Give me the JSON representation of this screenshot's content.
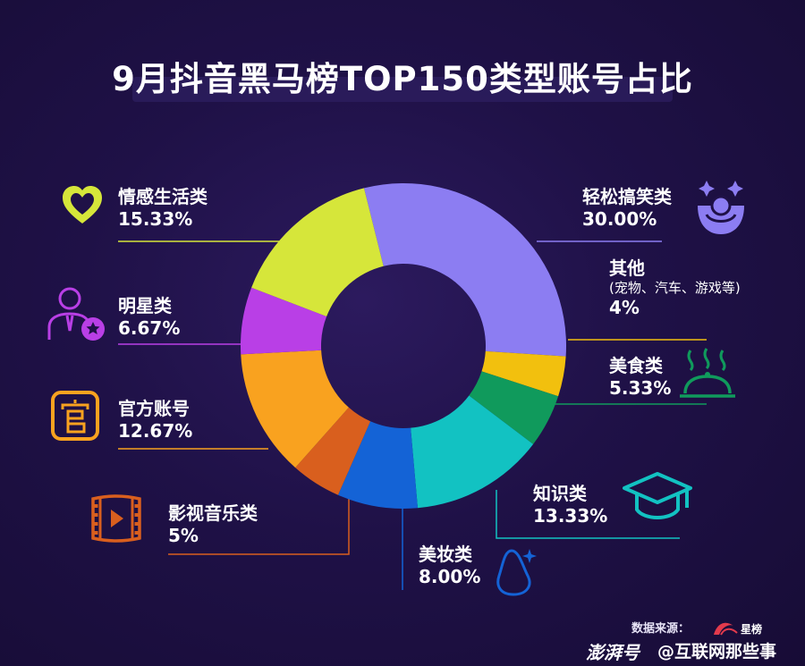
{
  "title": "9月抖音黑马榜TOP150类型账号占比",
  "chart_data": {
    "type": "pie",
    "donut": true,
    "title": "9月抖音黑马榜TOP150类型账号占比",
    "slices": [
      {
        "name": "轻松搞笑类",
        "pct_label": "30.00%",
        "value": 30.0,
        "color": "#8c7df2"
      },
      {
        "name": "其他",
        "sub": "(宠物、汽车、游戏等)",
        "pct_label": "4%",
        "value": 4.0,
        "color": "#f2c00e"
      },
      {
        "name": "美食类",
        "pct_label": "5.33%",
        "value": 5.33,
        "color": "#109a5c"
      },
      {
        "name": "知识类",
        "pct_label": "13.33%",
        "value": 13.33,
        "color": "#12c2c2"
      },
      {
        "name": "美妆类",
        "pct_label": "8.00%",
        "value": 8.0,
        "color": "#1463d6"
      },
      {
        "name": "影视音乐类",
        "pct_label": "5%",
        "value": 5.0,
        "color": "#d95f1e"
      },
      {
        "name": "官方账号",
        "pct_label": "12.67%",
        "value": 12.67,
        "color": "#f9a21f"
      },
      {
        "name": "明星类",
        "pct_label": "6.67%",
        "value": 6.67,
        "color": "#b93fe6"
      },
      {
        "name": "情感生活类",
        "pct_label": "15.33%",
        "value": 15.33,
        "color": "#d6e63a"
      }
    ]
  },
  "icons": {
    "funny": "clown-face-icon",
    "food": "food-cloche-icon",
    "knowledge": "graduation-cap-icon",
    "beauty": "beauty-egg-sponge-icon",
    "film": "film-strip-icon",
    "official": "official-seal-icon",
    "star": "celebrity-user-icon",
    "emotion": "heart-icon"
  },
  "footer": {
    "source_label": "数据来源：",
    "source_brand": "星榜",
    "platform_logo": "澎湃号",
    "handle": "@互联网那些事"
  }
}
